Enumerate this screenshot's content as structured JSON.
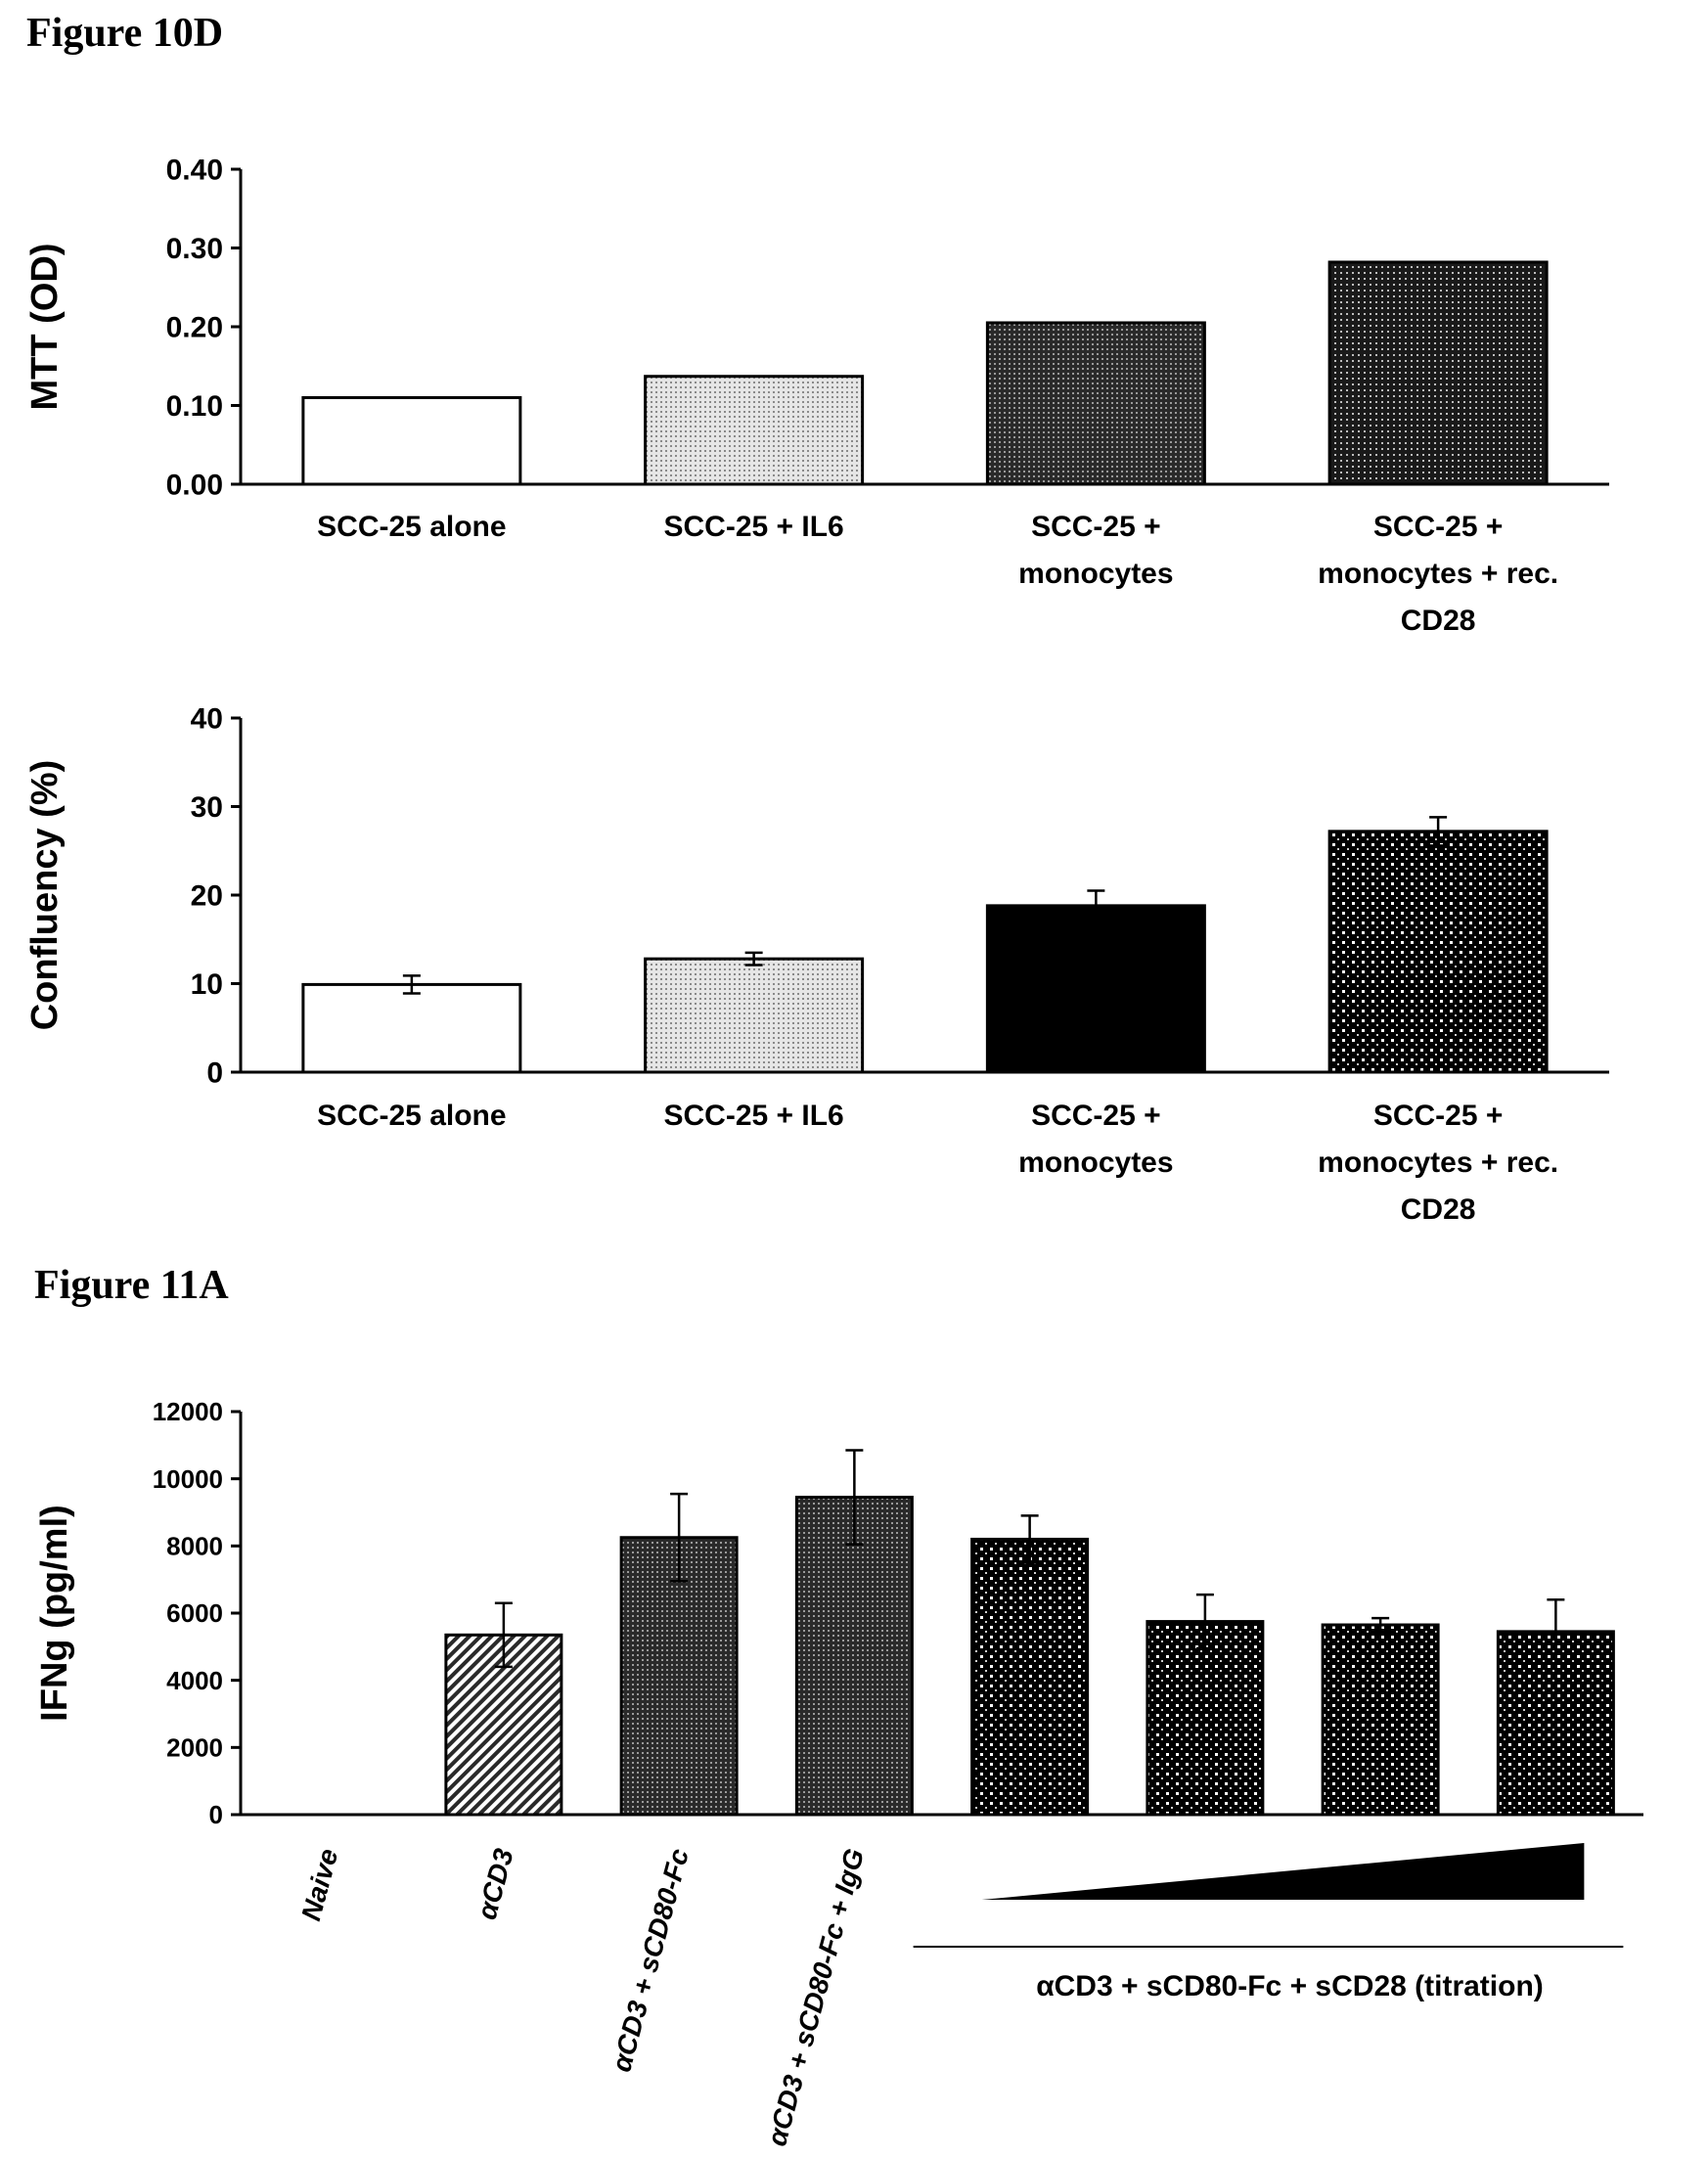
{
  "headings": {
    "fig10d": "Figure 10D",
    "fig11a": "Figure 11A"
  },
  "chart_data": [
    {
      "type": "bar",
      "ylabel": "MTT (OD)",
      "ylim": [
        0,
        0.4
      ],
      "yticks": [
        "0.00",
        "0.10",
        "0.20",
        "0.30",
        "0.40"
      ],
      "categories": [
        [
          "SCC-25 alone"
        ],
        [
          "SCC-25 + IL6"
        ],
        [
          "SCC-25 +",
          "monocytes"
        ],
        [
          "SCC-25 +",
          "monocytes + rec.",
          "CD28"
        ]
      ],
      "values": [
        0.11,
        0.137,
        0.205,
        0.282
      ],
      "errors": null,
      "fills": [
        "white",
        "light-dots",
        "dark-dots",
        "dense-dots"
      ]
    },
    {
      "type": "bar",
      "ylabel": "Confluency (%)",
      "ylim": [
        0,
        40
      ],
      "yticks": [
        "0",
        "10",
        "20",
        "30",
        "40"
      ],
      "categories": [
        [
          "SCC-25 alone"
        ],
        [
          "SCC-25 + IL6"
        ],
        [
          "SCC-25 +",
          "monocytes"
        ],
        [
          "SCC-25 +",
          "monocytes + rec.",
          "CD28"
        ]
      ],
      "values": [
        9.9,
        12.8,
        18.8,
        27.2
      ],
      "errors": [
        1.0,
        0.7,
        1.7,
        1.6
      ],
      "fills": [
        "white",
        "light-dots",
        "black",
        "white-dots"
      ]
    },
    {
      "type": "bar",
      "ylabel": "IFNg (pg/ml)",
      "ylim": [
        0,
        12000
      ],
      "yticks": [
        "0",
        "2000",
        "4000",
        "6000",
        "8000",
        "10000",
        "12000"
      ],
      "categories": [
        "Naive",
        "αCD3",
        "αCD3 + sCD80-Fc",
        "αCD3 + sCD80-Fc + IgG",
        "",
        "",
        "",
        ""
      ],
      "values": [
        0,
        5350,
        8250,
        9450,
        8200,
        5750,
        5650,
        5450
      ],
      "errors": [
        0,
        950,
        1300,
        1400,
        700,
        800,
        200,
        950
      ],
      "fills": [
        "none",
        "hatch",
        "dark-dots",
        "dark-dots",
        "white-dots",
        "white-dots",
        "white-dots",
        "white-dots"
      ],
      "titration_label": "αCD3 + sCD80-Fc + sCD28 (titration)"
    }
  ]
}
